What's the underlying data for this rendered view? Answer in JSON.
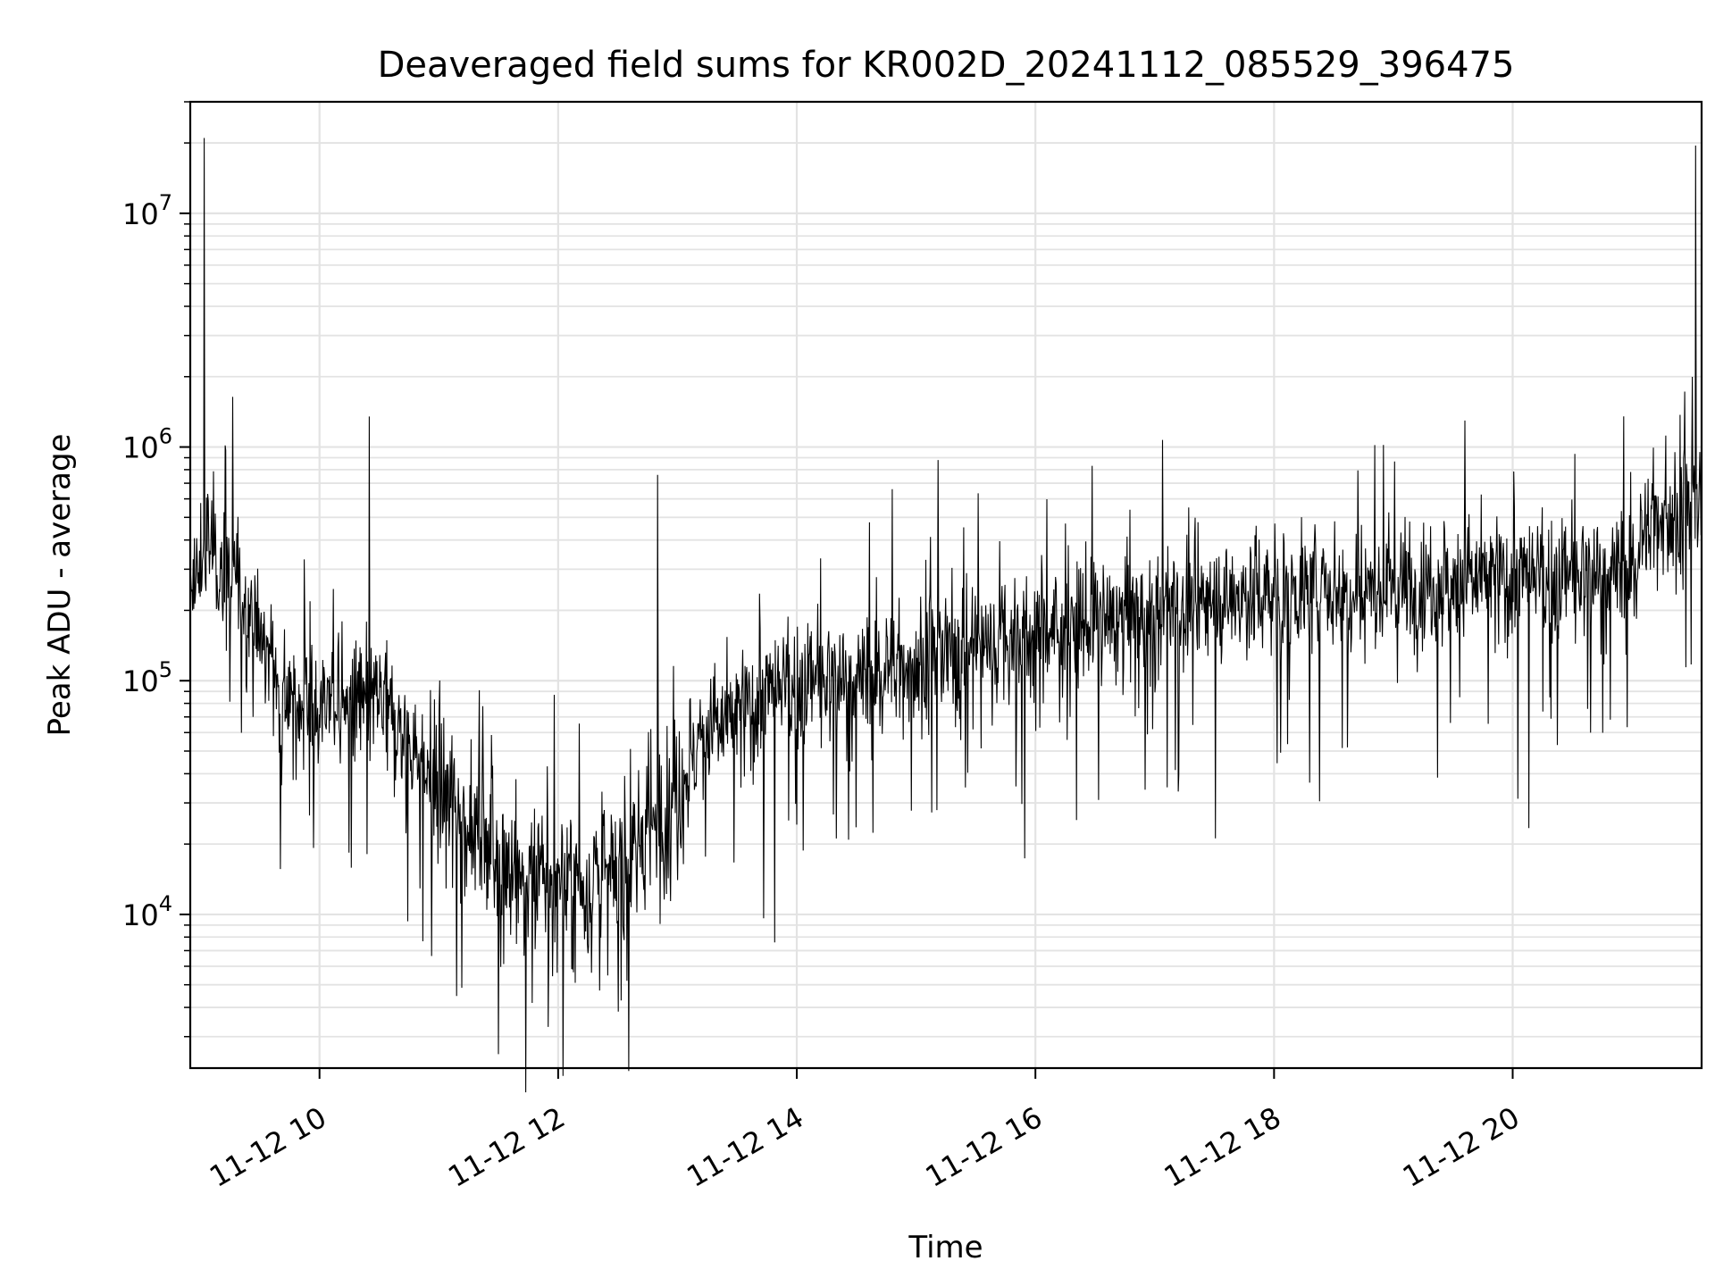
{
  "chart_data": {
    "type": "line",
    "title": "Deaveraged field sums for KR002D_20241112_085529_396475",
    "xlabel": "Time",
    "ylabel": "Peak ADU - average",
    "y_scale": "log",
    "ylim": [
      2200,
      30000000
    ],
    "xlim": [
      "2024-11-12 08:55",
      "2024-11-12 21:35"
    ],
    "x_ticks": [
      {
        "value": "2024-11-12 10:00",
        "label": "11-12 10"
      },
      {
        "value": "2024-11-12 12:00",
        "label": "11-12 12"
      },
      {
        "value": "2024-11-12 14:00",
        "label": "11-12 14"
      },
      {
        "value": "2024-11-12 16:00",
        "label": "11-12 16"
      },
      {
        "value": "2024-11-12 18:00",
        "label": "11-12 18"
      },
      {
        "value": "2024-11-12 20:00",
        "label": "11-12 20"
      }
    ],
    "y_ticks": [
      {
        "value": 10000,
        "base": "10",
        "exp": "4"
      },
      {
        "value": 100000,
        "base": "10",
        "exp": "5"
      },
      {
        "value": 1000000,
        "base": "10",
        "exp": "6"
      },
      {
        "value": 10000000,
        "base": "10",
        "exp": "7"
      }
    ],
    "grid": true,
    "line_color": "#000000",
    "series": [
      {
        "x": [
          "2024-11-12 08:55",
          "2024-11-12 09:00",
          "2024-11-12 09:05",
          "2024-11-12 09:10",
          "2024-11-12 09:20",
          "2024-11-12 09:30",
          "2024-11-12 09:45",
          "2024-11-12 10:00",
          "2024-11-12 10:15",
          "2024-11-12 10:30",
          "2024-11-12 10:45",
          "2024-11-12 11:00",
          "2024-11-12 11:15",
          "2024-11-12 11:30",
          "2024-11-12 11:45",
          "2024-11-12 12:00",
          "2024-11-12 12:15",
          "2024-11-12 12:30",
          "2024-11-12 12:45",
          "2024-11-12 13:00",
          "2024-11-12 13:15",
          "2024-11-12 13:30",
          "2024-11-12 13:45",
          "2024-11-12 14:00",
          "2024-11-12 14:30",
          "2024-11-12 15:00",
          "2024-11-12 15:30",
          "2024-11-12 16:00",
          "2024-11-12 16:30",
          "2024-11-12 17:00",
          "2024-11-12 17:30",
          "2024-11-12 18:00",
          "2024-11-12 18:30",
          "2024-11-12 19:00",
          "2024-11-12 19:30",
          "2024-11-12 20:00",
          "2024-11-12 20:30",
          "2024-11-12 21:00",
          "2024-11-12 21:10",
          "2024-11-12 21:20",
          "2024-11-12 21:35"
        ],
        "values": [
          200000,
          300000,
          400000,
          300000,
          250000,
          150000,
          80000,
          80000,
          80000,
          80000,
          55000,
          35000,
          25000,
          18000,
          13000,
          13000,
          13000,
          15000,
          22000,
          35000,
          60000,
          70000,
          85000,
          95000,
          100000,
          120000,
          140000,
          160000,
          180000,
          200000,
          220000,
          240000,
          250000,
          260000,
          270000,
          270000,
          270000,
          300000,
          500000,
          500000,
          550000
        ]
      }
    ],
    "spikes": [
      {
        "x": "2024-11-12 09:02",
        "value": 21000000
      },
      {
        "x": "2024-11-12 10:25",
        "value": 1350000
      },
      {
        "x": "2024-11-12 11:55",
        "value": 3300
      },
      {
        "x": "2024-11-12 12:50",
        "value": 760000
      },
      {
        "x": "2024-11-12 14:48",
        "value": 660000
      },
      {
        "x": "2024-11-12 18:55",
        "value": 1020000
      },
      {
        "x": "2024-11-12 21:17",
        "value": 1120000
      },
      {
        "x": "2024-11-12 21:32",
        "value": 19500000
      }
    ]
  }
}
